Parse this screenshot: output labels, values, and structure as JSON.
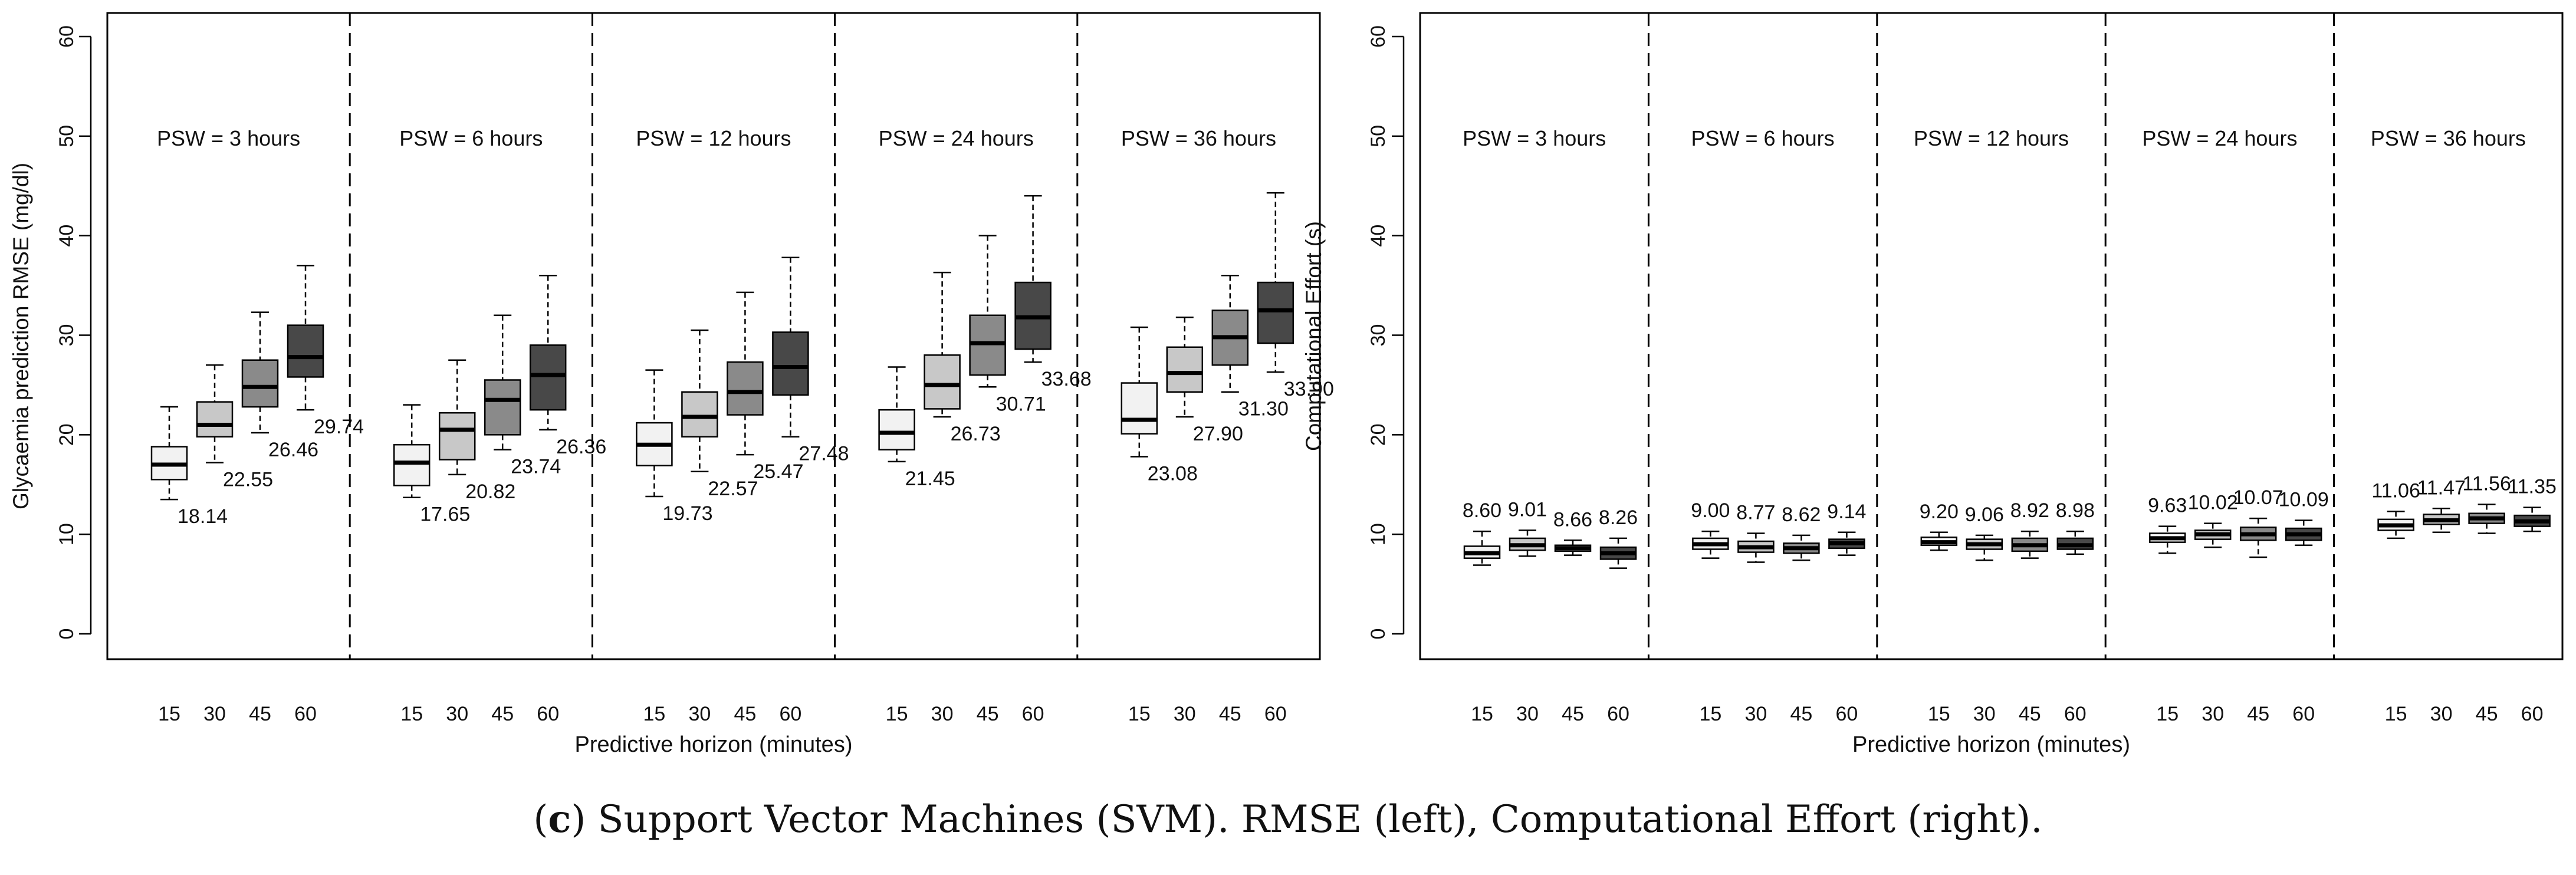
{
  "caption": {
    "panel_letter": "c",
    "text": " Support Vector Machines (SVM). RMSE (left), Computational Effort (right)."
  },
  "colors": {
    "box_fill_by_horizon": [
      "#f2f2f2",
      "#c8c8c8",
      "#8a8a8a",
      "#484848"
    ],
    "line": "#000000"
  },
  "chart_data": [
    {
      "type": "boxplot",
      "name": "rmse-chart",
      "title": "",
      "xlabel": "Predictive horizon (minutes)",
      "ylabel": "Glycaemia prediction RMSE (mg/dl)",
      "ylim": [
        0,
        60
      ],
      "yticks": [
        0,
        10,
        20,
        30,
        40,
        50,
        60
      ],
      "horizon_ticks": [
        "15",
        "30",
        "45",
        "60"
      ],
      "groups": [
        {
          "label": "PSW = 3 hours",
          "boxes": [
            {
              "horizon": "15",
              "min": 13.5,
              "q1": 15.5,
              "median": 17.0,
              "q3": 18.8,
              "max": 22.8,
              "label": "18.14"
            },
            {
              "horizon": "30",
              "min": 17.2,
              "q1": 19.8,
              "median": 21.0,
              "q3": 23.3,
              "max": 27.0,
              "label": "22.55"
            },
            {
              "horizon": "45",
              "min": 20.2,
              "q1": 22.8,
              "median": 24.8,
              "q3": 27.5,
              "max": 32.3,
              "label": "26.46"
            },
            {
              "horizon": "60",
              "min": 22.5,
              "q1": 25.8,
              "median": 27.8,
              "q3": 31.0,
              "max": 37.0,
              "label": "29.74"
            }
          ]
        },
        {
          "label": "PSW = 6 hours",
          "boxes": [
            {
              "horizon": "15",
              "min": 13.7,
              "q1": 14.9,
              "median": 17.2,
              "q3": 19.0,
              "max": 23.0,
              "label": "17.65"
            },
            {
              "horizon": "30",
              "min": 16.0,
              "q1": 17.5,
              "median": 20.5,
              "q3": 22.2,
              "max": 27.5,
              "label": "20.82"
            },
            {
              "horizon": "45",
              "min": 18.5,
              "q1": 20.0,
              "median": 23.5,
              "q3": 25.5,
              "max": 32.0,
              "label": "23.74"
            },
            {
              "horizon": "60",
              "min": 20.5,
              "q1": 22.5,
              "median": 26.0,
              "q3": 29.0,
              "max": 36.0,
              "label": "26.36"
            }
          ]
        },
        {
          "label": "PSW = 12 hours",
          "boxes": [
            {
              "horizon": "15",
              "min": 13.8,
              "q1": 16.9,
              "median": 19.0,
              "q3": 21.2,
              "max": 26.5,
              "label": "19.73"
            },
            {
              "horizon": "30",
              "min": 16.3,
              "q1": 19.8,
              "median": 21.8,
              "q3": 24.3,
              "max": 30.5,
              "label": "22.57"
            },
            {
              "horizon": "45",
              "min": 18.0,
              "q1": 22.0,
              "median": 24.3,
              "q3": 27.3,
              "max": 34.3,
              "label": "25.47"
            },
            {
              "horizon": "60",
              "min": 19.8,
              "q1": 24.0,
              "median": 26.8,
              "q3": 30.3,
              "max": 37.8,
              "label": "27.48"
            }
          ]
        },
        {
          "label": "PSW = 24 hours",
          "boxes": [
            {
              "horizon": "15",
              "min": 17.3,
              "q1": 18.5,
              "median": 20.2,
              "q3": 22.5,
              "max": 26.8,
              "label": "21.45"
            },
            {
              "horizon": "30",
              "min": 21.8,
              "q1": 22.6,
              "median": 25.0,
              "q3": 28.0,
              "max": 36.3,
              "label": "26.73"
            },
            {
              "horizon": "45",
              "min": 24.8,
              "q1": 26.0,
              "median": 29.2,
              "q3": 32.0,
              "max": 40.0,
              "label": "30.71"
            },
            {
              "horizon": "60",
              "min": 27.3,
              "q1": 28.6,
              "median": 31.8,
              "q3": 35.3,
              "max": 44.0,
              "label": "33.68"
            }
          ]
        },
        {
          "label": "PSW = 36 hours",
          "boxes": [
            {
              "horizon": "15",
              "min": 17.8,
              "q1": 20.1,
              "median": 21.5,
              "q3": 25.2,
              "max": 30.8,
              "label": "23.08"
            },
            {
              "horizon": "30",
              "min": 21.8,
              "q1": 24.3,
              "median": 26.2,
              "q3": 28.8,
              "max": 31.8,
              "label": "27.90"
            },
            {
              "horizon": "45",
              "min": 24.3,
              "q1": 27.0,
              "median": 29.8,
              "q3": 32.5,
              "max": 36.0,
              "label": "31.30"
            },
            {
              "horizon": "60",
              "min": 26.3,
              "q1": 29.2,
              "median": 32.5,
              "q3": 35.3,
              "max": 44.3,
              "label": "33.90"
            }
          ]
        }
      ]
    },
    {
      "type": "boxplot",
      "name": "effort-chart",
      "title": "",
      "xlabel": "Predictive horizon (minutes)",
      "ylabel": "Computational Effort (s)",
      "ylim": [
        0,
        60
      ],
      "yticks": [
        0,
        10,
        20,
        30,
        40,
        50,
        60
      ],
      "horizon_ticks": [
        "15",
        "30",
        "45",
        "60"
      ],
      "groups": [
        {
          "label": "PSW = 3 hours",
          "boxes": [
            {
              "horizon": "15",
              "min": 6.9,
              "q1": 7.6,
              "median": 8.1,
              "q3": 8.8,
              "max": 10.3,
              "label": "8.60"
            },
            {
              "horizon": "30",
              "min": 7.8,
              "q1": 8.4,
              "median": 8.9,
              "q3": 9.6,
              "max": 10.4,
              "label": "9.01"
            },
            {
              "horizon": "45",
              "min": 7.9,
              "q1": 8.3,
              "median": 8.6,
              "q3": 8.9,
              "max": 9.4,
              "label": "8.66"
            },
            {
              "horizon": "60",
              "min": 6.6,
              "q1": 7.5,
              "median": 8.1,
              "q3": 8.7,
              "max": 9.6,
              "label": "8.26"
            }
          ]
        },
        {
          "label": "PSW = 6 hours",
          "boxes": [
            {
              "horizon": "15",
              "min": 7.6,
              "q1": 8.5,
              "median": 9.0,
              "q3": 9.6,
              "max": 10.3,
              "label": "9.00"
            },
            {
              "horizon": "30",
              "min": 7.2,
              "q1": 8.2,
              "median": 8.7,
              "q3": 9.3,
              "max": 10.1,
              "label": "8.77"
            },
            {
              "horizon": "45",
              "min": 7.4,
              "q1": 8.1,
              "median": 8.6,
              "q3": 9.1,
              "max": 9.9,
              "label": "8.62"
            },
            {
              "horizon": "60",
              "min": 7.9,
              "q1": 8.6,
              "median": 9.1,
              "q3": 9.5,
              "max": 10.2,
              "label": "9.14"
            }
          ]
        },
        {
          "label": "PSW = 12 hours",
          "boxes": [
            {
              "horizon": "15",
              "min": 8.4,
              "q1": 8.9,
              "median": 9.2,
              "q3": 9.7,
              "max": 10.2,
              "label": "9.20"
            },
            {
              "horizon": "30",
              "min": 7.4,
              "q1": 8.5,
              "median": 9.0,
              "q3": 9.5,
              "max": 9.9,
              "label": "9.06"
            },
            {
              "horizon": "45",
              "min": 7.6,
              "q1": 8.3,
              "median": 8.9,
              "q3": 9.6,
              "max": 10.3,
              "label": "8.92"
            },
            {
              "horizon": "60",
              "min": 8.0,
              "q1": 8.5,
              "median": 8.9,
              "q3": 9.6,
              "max": 10.3,
              "label": "8.98"
            }
          ]
        },
        {
          "label": "PSW = 24 hours",
          "boxes": [
            {
              "horizon": "15",
              "min": 8.1,
              "q1": 9.2,
              "median": 9.6,
              "q3": 10.1,
              "max": 10.8,
              "label": "9.63"
            },
            {
              "horizon": "30",
              "min": 8.7,
              "q1": 9.5,
              "median": 10.0,
              "q3": 10.4,
              "max": 11.1,
              "label": "10.02"
            },
            {
              "horizon": "45",
              "min": 7.7,
              "q1": 9.4,
              "median": 10.0,
              "q3": 10.7,
              "max": 11.6,
              "label": "10.07"
            },
            {
              "horizon": "60",
              "min": 8.9,
              "q1": 9.4,
              "median": 10.0,
              "q3": 10.6,
              "max": 11.4,
              "label": "10.09"
            }
          ]
        },
        {
          "label": "PSW = 36 hours",
          "boxes": [
            {
              "horizon": "15",
              "min": 9.6,
              "q1": 10.4,
              "median": 10.9,
              "q3": 11.5,
              "max": 12.3,
              "label": "11.06"
            },
            {
              "horizon": "30",
              "min": 10.2,
              "q1": 11.0,
              "median": 11.4,
              "q3": 12.0,
              "max": 12.6,
              "label": "11.47"
            },
            {
              "horizon": "45",
              "min": 10.1,
              "q1": 11.1,
              "median": 11.6,
              "q3": 12.1,
              "max": 13.0,
              "label": "11.56"
            },
            {
              "horizon": "60",
              "min": 10.3,
              "q1": 10.8,
              "median": 11.3,
              "q3": 11.9,
              "max": 12.7,
              "label": "11.35"
            }
          ]
        }
      ]
    }
  ]
}
